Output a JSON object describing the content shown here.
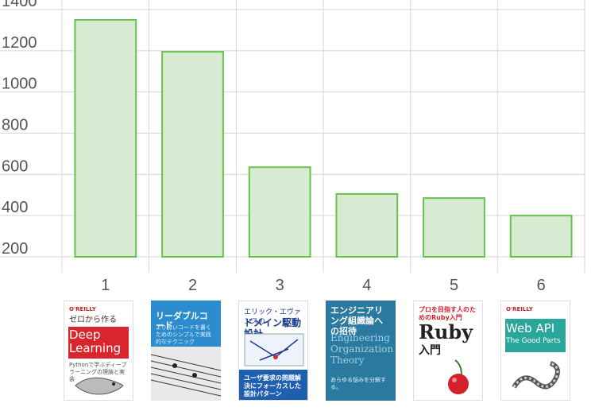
{
  "chart_data": {
    "type": "bar",
    "categories": [
      "1",
      "2",
      "3",
      "4",
      "5",
      "6"
    ],
    "values": [
      1350,
      1195,
      635,
      505,
      485,
      400
    ],
    "ylim": [
      200,
      1400
    ],
    "yticks": [
      "200",
      "400",
      "600",
      "800",
      "1000",
      "1200",
      "1400"
    ],
    "grid": true,
    "colors": {
      "bar_fill": "#d9ead3",
      "bar_stroke": "#66c24a",
      "grid": "#d6d6d6",
      "tick": "#555555"
    }
  },
  "books": [
    {
      "brand": "O'REILLY",
      "title": "ゼロから作る",
      "subtitle": "Deep Learning",
      "note": "Pythonで学ぶディープラーニングの理論と実装",
      "icon": "fish-icon",
      "bg": "#ffffff",
      "accent": "#d8262c"
    },
    {
      "title": "リーダブルコード",
      "note": "より良いコードを書くためのシンプルで実践的なテクニック",
      "icon": "sheet-music-icon",
      "bg": "#2d8ccd",
      "accent": "#ffffff"
    },
    {
      "title": "エリック・エヴァンスの",
      "subtitle": "ドメイン駆動設計",
      "note": "ユーザ要求の問題解決にフォーカスした設計パターン",
      "icon": "diagram-icon",
      "bg": "#ffffff",
      "accent": "#1a3a8c"
    },
    {
      "title": "エンジニアリング組織論への招待",
      "subtitle": "Engineering Organization Theory",
      "note": "あらゆる悩みを分解する。",
      "bg": "#2a7aa0",
      "accent": "#ffffff"
    },
    {
      "title": "プロを目指す人のためのRuby入門",
      "subtitle": "Ruby",
      "note": "入門",
      "icon": "cherry-icon",
      "bg": "#ffffff",
      "accent": "#d3202c"
    },
    {
      "brand": "O'REILLY",
      "subtitle": "Web API",
      "note": "The Good Parts",
      "icon": "snake-icon",
      "bg": "#ffffff",
      "accent": "#2aa69a"
    }
  ]
}
